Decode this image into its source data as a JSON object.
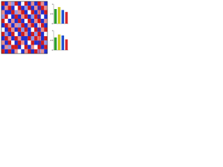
{
  "chart_data": [
    {
      "type": "heatmap",
      "zlim": [
        -1,
        1
      ],
      "colors": [
        "#1f2fd0",
        "#ffffff",
        "#d11c1c"
      ],
      "values": [
        [
          1,
          -1,
          0.5,
          -0.5,
          1,
          -1,
          0,
          1,
          -1,
          0.5,
          -1,
          1,
          0.5,
          -1
        ],
        [
          -1,
          0.5,
          1,
          -1,
          0,
          1,
          -1,
          -0.5,
          1,
          -1,
          0.5,
          -1,
          1,
          0.5
        ],
        [
          0.5,
          -1,
          -1,
          1,
          -0.5,
          0.5,
          1,
          -1,
          0,
          1,
          -1,
          0.5,
          -1,
          1
        ],
        [
          -0.5,
          1,
          0,
          -1,
          1,
          -1,
          0.5,
          1,
          -1,
          -0.5,
          1,
          -1,
          0,
          -1
        ],
        [
          1,
          0,
          -1,
          0.5,
          -1,
          1,
          -1,
          0,
          1,
          -1,
          0.5,
          1,
          -1,
          0.5
        ],
        [
          -1,
          1,
          0.5,
          -1,
          0.5,
          -0.5,
          1,
          -1,
          0.5,
          1,
          -1,
          0,
          1,
          -1
        ],
        [
          0,
          -1,
          1,
          0.5,
          -1,
          1,
          -0.5,
          1,
          -1,
          0,
          1,
          -1,
          0.5,
          1
        ],
        [
          1,
          -0.5,
          -1,
          1,
          0,
          -1,
          1,
          0.5,
          -1,
          1,
          -0.5,
          1,
          -1,
          0
        ],
        [
          -1,
          1,
          0.5,
          -1,
          1,
          0.5,
          -1,
          -1,
          1,
          -0.5,
          1,
          0.5,
          -1,
          1
        ],
        [
          0.5,
          -1,
          1,
          0,
          -1,
          1,
          0.5,
          -1,
          0,
          1,
          -1,
          -1,
          1,
          -0.5
        ],
        [
          -1,
          0.5,
          -0.5,
          1,
          1,
          -1,
          0,
          1,
          -1,
          0.5,
          0,
          1,
          -1,
          1
        ],
        [
          1,
          -1,
          1,
          -1,
          0.5,
          0,
          -1,
          0.5,
          1,
          -1,
          1,
          -0.5,
          0.5,
          -1
        ]
      ]
    },
    {
      "type": "bar",
      "ylim": [
        0,
        1
      ],
      "yticks": [
        0,
        0.5,
        1
      ],
      "values": [
        0.75,
        0.85,
        0.7,
        0.6
      ],
      "colors": [
        "#2ca02c",
        "#c8c81e",
        "#1f50d0",
        "#d62728"
      ]
    },
    {
      "type": "bar",
      "ylim": [
        0,
        1
      ],
      "yticks": [
        0,
        0.5,
        1
      ],
      "values": [
        0.65,
        0.8,
        0.75,
        0.55
      ],
      "colors": [
        "#2ca02c",
        "#c8c81e",
        "#1f50d0",
        "#d62728"
      ]
    }
  ]
}
